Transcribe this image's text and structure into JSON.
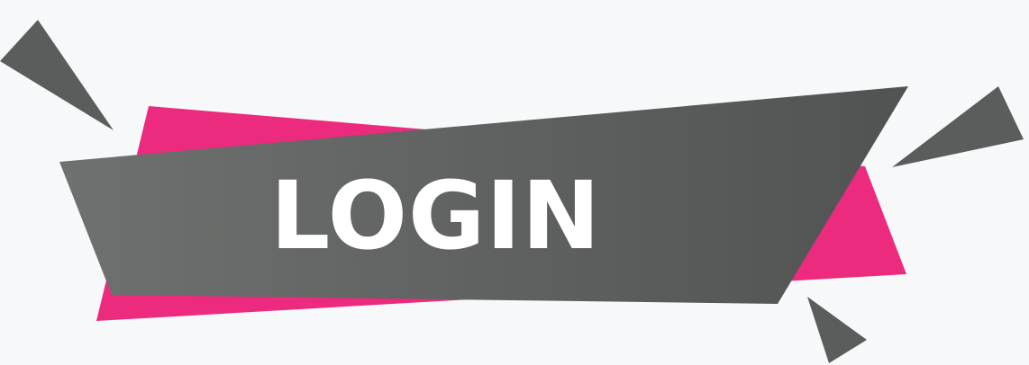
{
  "banner": {
    "label": "LOGIN"
  },
  "colors": {
    "background": "#f6f8fa",
    "accent_pink": "#ec2a7e",
    "gray_light": "#6f7170",
    "gray_dark": "#515352",
    "text": "#ffffff"
  }
}
